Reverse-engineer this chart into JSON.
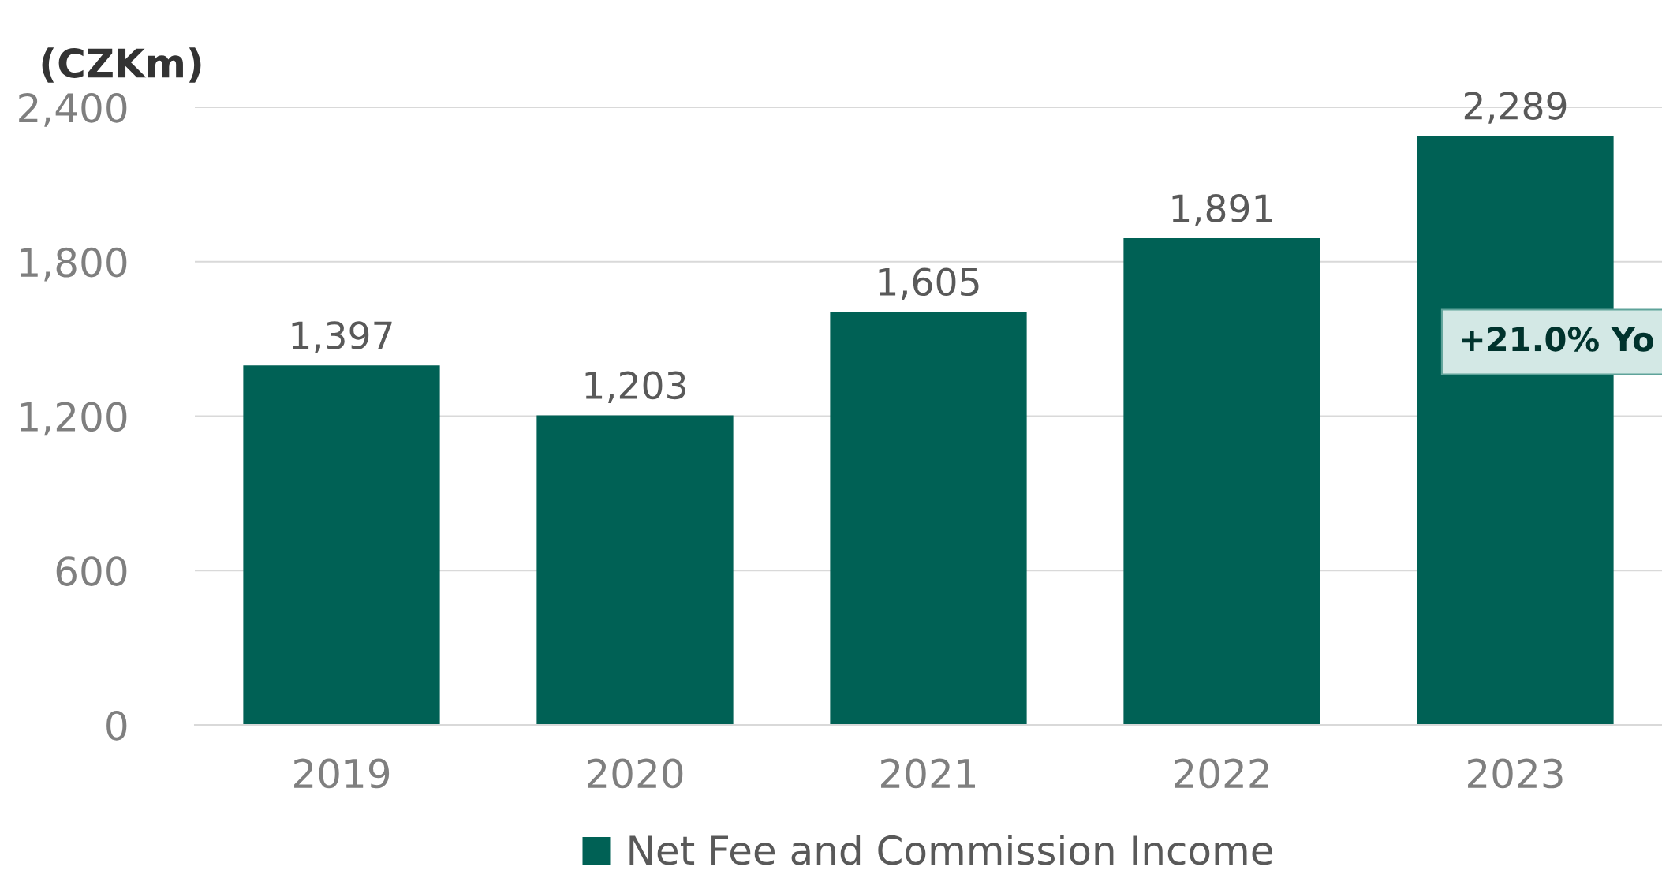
{
  "chart_data": {
    "type": "bar",
    "ylabel": "(CZKm)",
    "categories": [
      "2019",
      "2020",
      "2021",
      "2022",
      "2023"
    ],
    "series": [
      {
        "name": "Net Fee and Commission Income",
        "color": "#006155",
        "values": [
          1397,
          1203,
          1605,
          1891,
          2289
        ]
      }
    ],
    "ylim": [
      0,
      2400
    ],
    "yticks": [
      {
        "value": 0,
        "label": "0"
      },
      {
        "value": 600,
        "label": "600"
      },
      {
        "value": 1200,
        "label": "1,200"
      },
      {
        "value": 1800,
        "label": "1,800"
      },
      {
        "value": 2400,
        "label": "2,400"
      }
    ],
    "value_labels": [
      "1,397",
      "1,203",
      "1,605",
      "1,891",
      "2,289"
    ],
    "annotations": [
      "+21.0% Yo"
    ],
    "grid": "y",
    "legend": "bottom"
  }
}
